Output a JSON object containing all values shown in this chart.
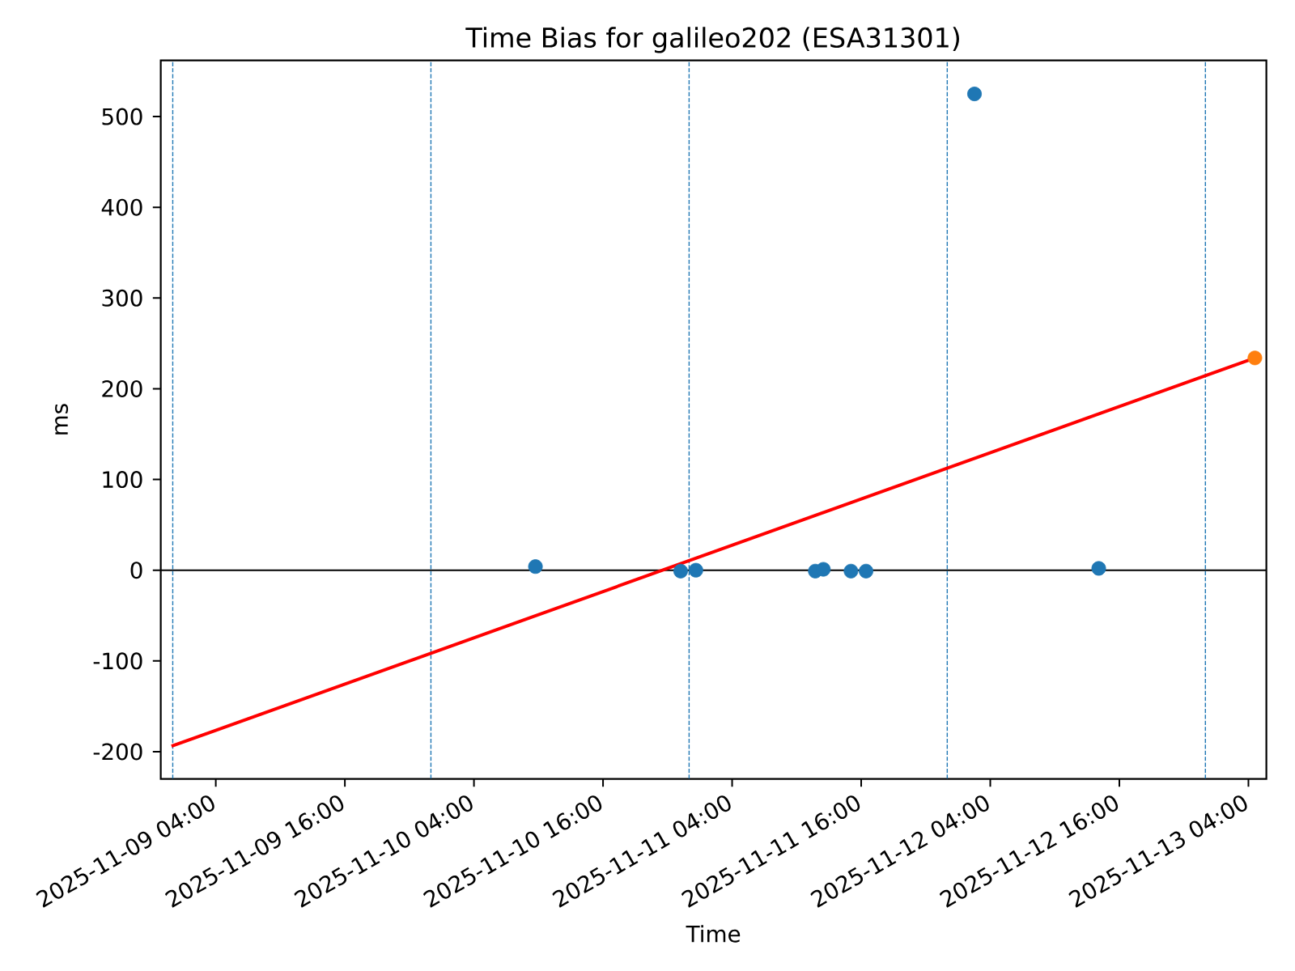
{
  "chart_data": {
    "type": "scatter",
    "title": "Time Bias for galileo202 (ESA31301)",
    "xlabel": "Time",
    "ylabel": "ms",
    "xlim": [
      "2025-11-08T22:53",
      "2025-11-13T05:40"
    ],
    "xticks": [
      {
        "value": "2025-11-09T04:00",
        "label": "2025-11-09 04:00"
      },
      {
        "value": "2025-11-09T16:00",
        "label": "2025-11-09 16:00"
      },
      {
        "value": "2025-11-10T04:00",
        "label": "2025-11-10 04:00"
      },
      {
        "value": "2025-11-10T16:00",
        "label": "2025-11-10 16:00"
      },
      {
        "value": "2025-11-11T04:00",
        "label": "2025-11-11 04:00"
      },
      {
        "value": "2025-11-11T16:00",
        "label": "2025-11-11 16:00"
      },
      {
        "value": "2025-11-12T04:00",
        "label": "2025-11-12 04:00"
      },
      {
        "value": "2025-11-12T16:00",
        "label": "2025-11-12 16:00"
      },
      {
        "value": "2025-11-13T04:00",
        "label": "2025-11-13 04:00"
      }
    ],
    "ylim": [
      -230,
      562
    ],
    "yticks": [
      -200,
      -100,
      0,
      100,
      200,
      300,
      400,
      500
    ],
    "marker": "circle",
    "series": [
      {
        "color": "#1f77b4",
        "x": [
          "2025-11-10T09:43",
          "2025-11-10T23:13",
          "2025-11-11T00:38",
          "2025-11-11T11:44",
          "2025-11-11T12:29",
          "2025-11-11T15:03",
          "2025-11-11T16:27",
          "2025-11-12T02:32",
          "2025-11-12T14:05"
        ],
        "values": [
          4,
          -1,
          0,
          -1,
          1,
          -1,
          -1,
          525,
          2
        ]
      },
      {
        "type": "line",
        "marker": "none",
        "color": "#ff0000",
        "x": [
          "2025-11-08T23:53",
          "2025-11-13T04:36"
        ],
        "values": [
          -194,
          234
        ]
      },
      {
        "color": "#ff7f0e",
        "x": [
          "2025-11-13T04:36"
        ],
        "values": [
          234
        ]
      }
    ],
    "ref_lines": [
      {
        "axis": "y",
        "value": 0,
        "color": "#000000",
        "line_style": "solid"
      },
      {
        "axis": "x",
        "value": "2025-11-09T00:00",
        "color": "#1f77b4",
        "line_style": "dashed"
      },
      {
        "axis": "x",
        "value": "2025-11-10T00:00",
        "color": "#1f77b4",
        "line_style": "dashed"
      },
      {
        "axis": "x",
        "value": "2025-11-11T00:00",
        "color": "#1f77b4",
        "line_style": "dashed"
      },
      {
        "axis": "x",
        "value": "2025-11-12T00:00",
        "color": "#1f77b4",
        "line_style": "dashed"
      },
      {
        "axis": "x",
        "value": "2025-11-13T00:00",
        "color": "#1f77b4",
        "line_style": "dashed"
      }
    ]
  }
}
